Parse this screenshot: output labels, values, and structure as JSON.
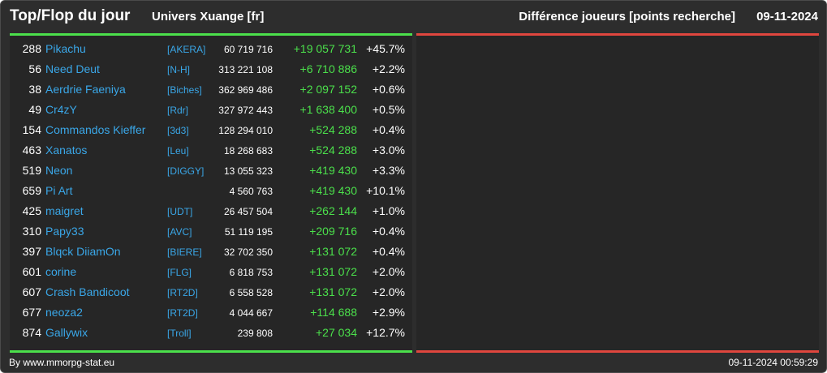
{
  "header": {
    "title": "Top/Flop du jour",
    "universe": "Univers Xuange [fr]",
    "diff_label": "Différence joueurs [points recherche]",
    "date": "09-11-2024"
  },
  "colors": {
    "background": "#2d2d2d",
    "panel": "#262626",
    "top_bar": "#4be04b",
    "flop_bar": "#e0463e",
    "player_link": "#3aa7e8",
    "gain": "#4be04b"
  },
  "top_players": [
    {
      "rank": "288",
      "name": "Pikachu",
      "alliance": "[AKERA]",
      "points": "60 719 716",
      "gain": "+19 057 731",
      "percent": "+45.7%"
    },
    {
      "rank": "56",
      "name": "Need Deut",
      "alliance": "[N-H]",
      "points": "313 221 108",
      "gain": "+6 710 886",
      "percent": "+2.2%"
    },
    {
      "rank": "38",
      "name": "Aerdrie Faeniya",
      "alliance": "[Biches]",
      "points": "362 969 486",
      "gain": "+2 097 152",
      "percent": "+0.6%"
    },
    {
      "rank": "49",
      "name": "Cr4zY",
      "alliance": "[Rdr]",
      "points": "327 972 443",
      "gain": "+1 638 400",
      "percent": "+0.5%"
    },
    {
      "rank": "154",
      "name": "Commandos Kieffer",
      "alliance": "[3d3]",
      "points": "128 294 010",
      "gain": "+524 288",
      "percent": "+0.4%"
    },
    {
      "rank": "463",
      "name": "Xanatos",
      "alliance": "[Leu]",
      "points": "18 268 683",
      "gain": "+524 288",
      "percent": "+3.0%"
    },
    {
      "rank": "519",
      "name": "Neon",
      "alliance": "[DIGGY]",
      "points": "13 055 323",
      "gain": "+419 430",
      "percent": "+3.3%"
    },
    {
      "rank": "659",
      "name": "Pi Art",
      "alliance": "",
      "points": "4 560 763",
      "gain": "+419 430",
      "percent": "+10.1%"
    },
    {
      "rank": "425",
      "name": "maigret",
      "alliance": "[UDT]",
      "points": "26 457 504",
      "gain": "+262 144",
      "percent": "+1.0%"
    },
    {
      "rank": "310",
      "name": "Papy33",
      "alliance": "[AVC]",
      "points": "51 119 195",
      "gain": "+209 716",
      "percent": "+0.4%"
    },
    {
      "rank": "397",
      "name": "Blqck DiiamOn",
      "alliance": "[BIERE]",
      "points": "32 702 350",
      "gain": "+131 072",
      "percent": "+0.4%"
    },
    {
      "rank": "601",
      "name": "corine",
      "alliance": "[FLG]",
      "points": "6 818 753",
      "gain": "+131 072",
      "percent": "+2.0%"
    },
    {
      "rank": "607",
      "name": "Crash Bandicoot",
      "alliance": "[RT2D]",
      "points": "6 558 528",
      "gain": "+131 072",
      "percent": "+2.0%"
    },
    {
      "rank": "677",
      "name": "neoza2",
      "alliance": "[RT2D]",
      "points": "4 044 667",
      "gain": "+114 688",
      "percent": "+2.9%"
    },
    {
      "rank": "874",
      "name": "Gallywix",
      "alliance": "[Troll]",
      "points": "239 808",
      "gain": "+27 034",
      "percent": "+12.7%"
    }
  ],
  "flop_players": [],
  "footer": {
    "credit": "By www.mmorpg-stat.eu",
    "timestamp": "09-11-2024 00:59:29"
  }
}
